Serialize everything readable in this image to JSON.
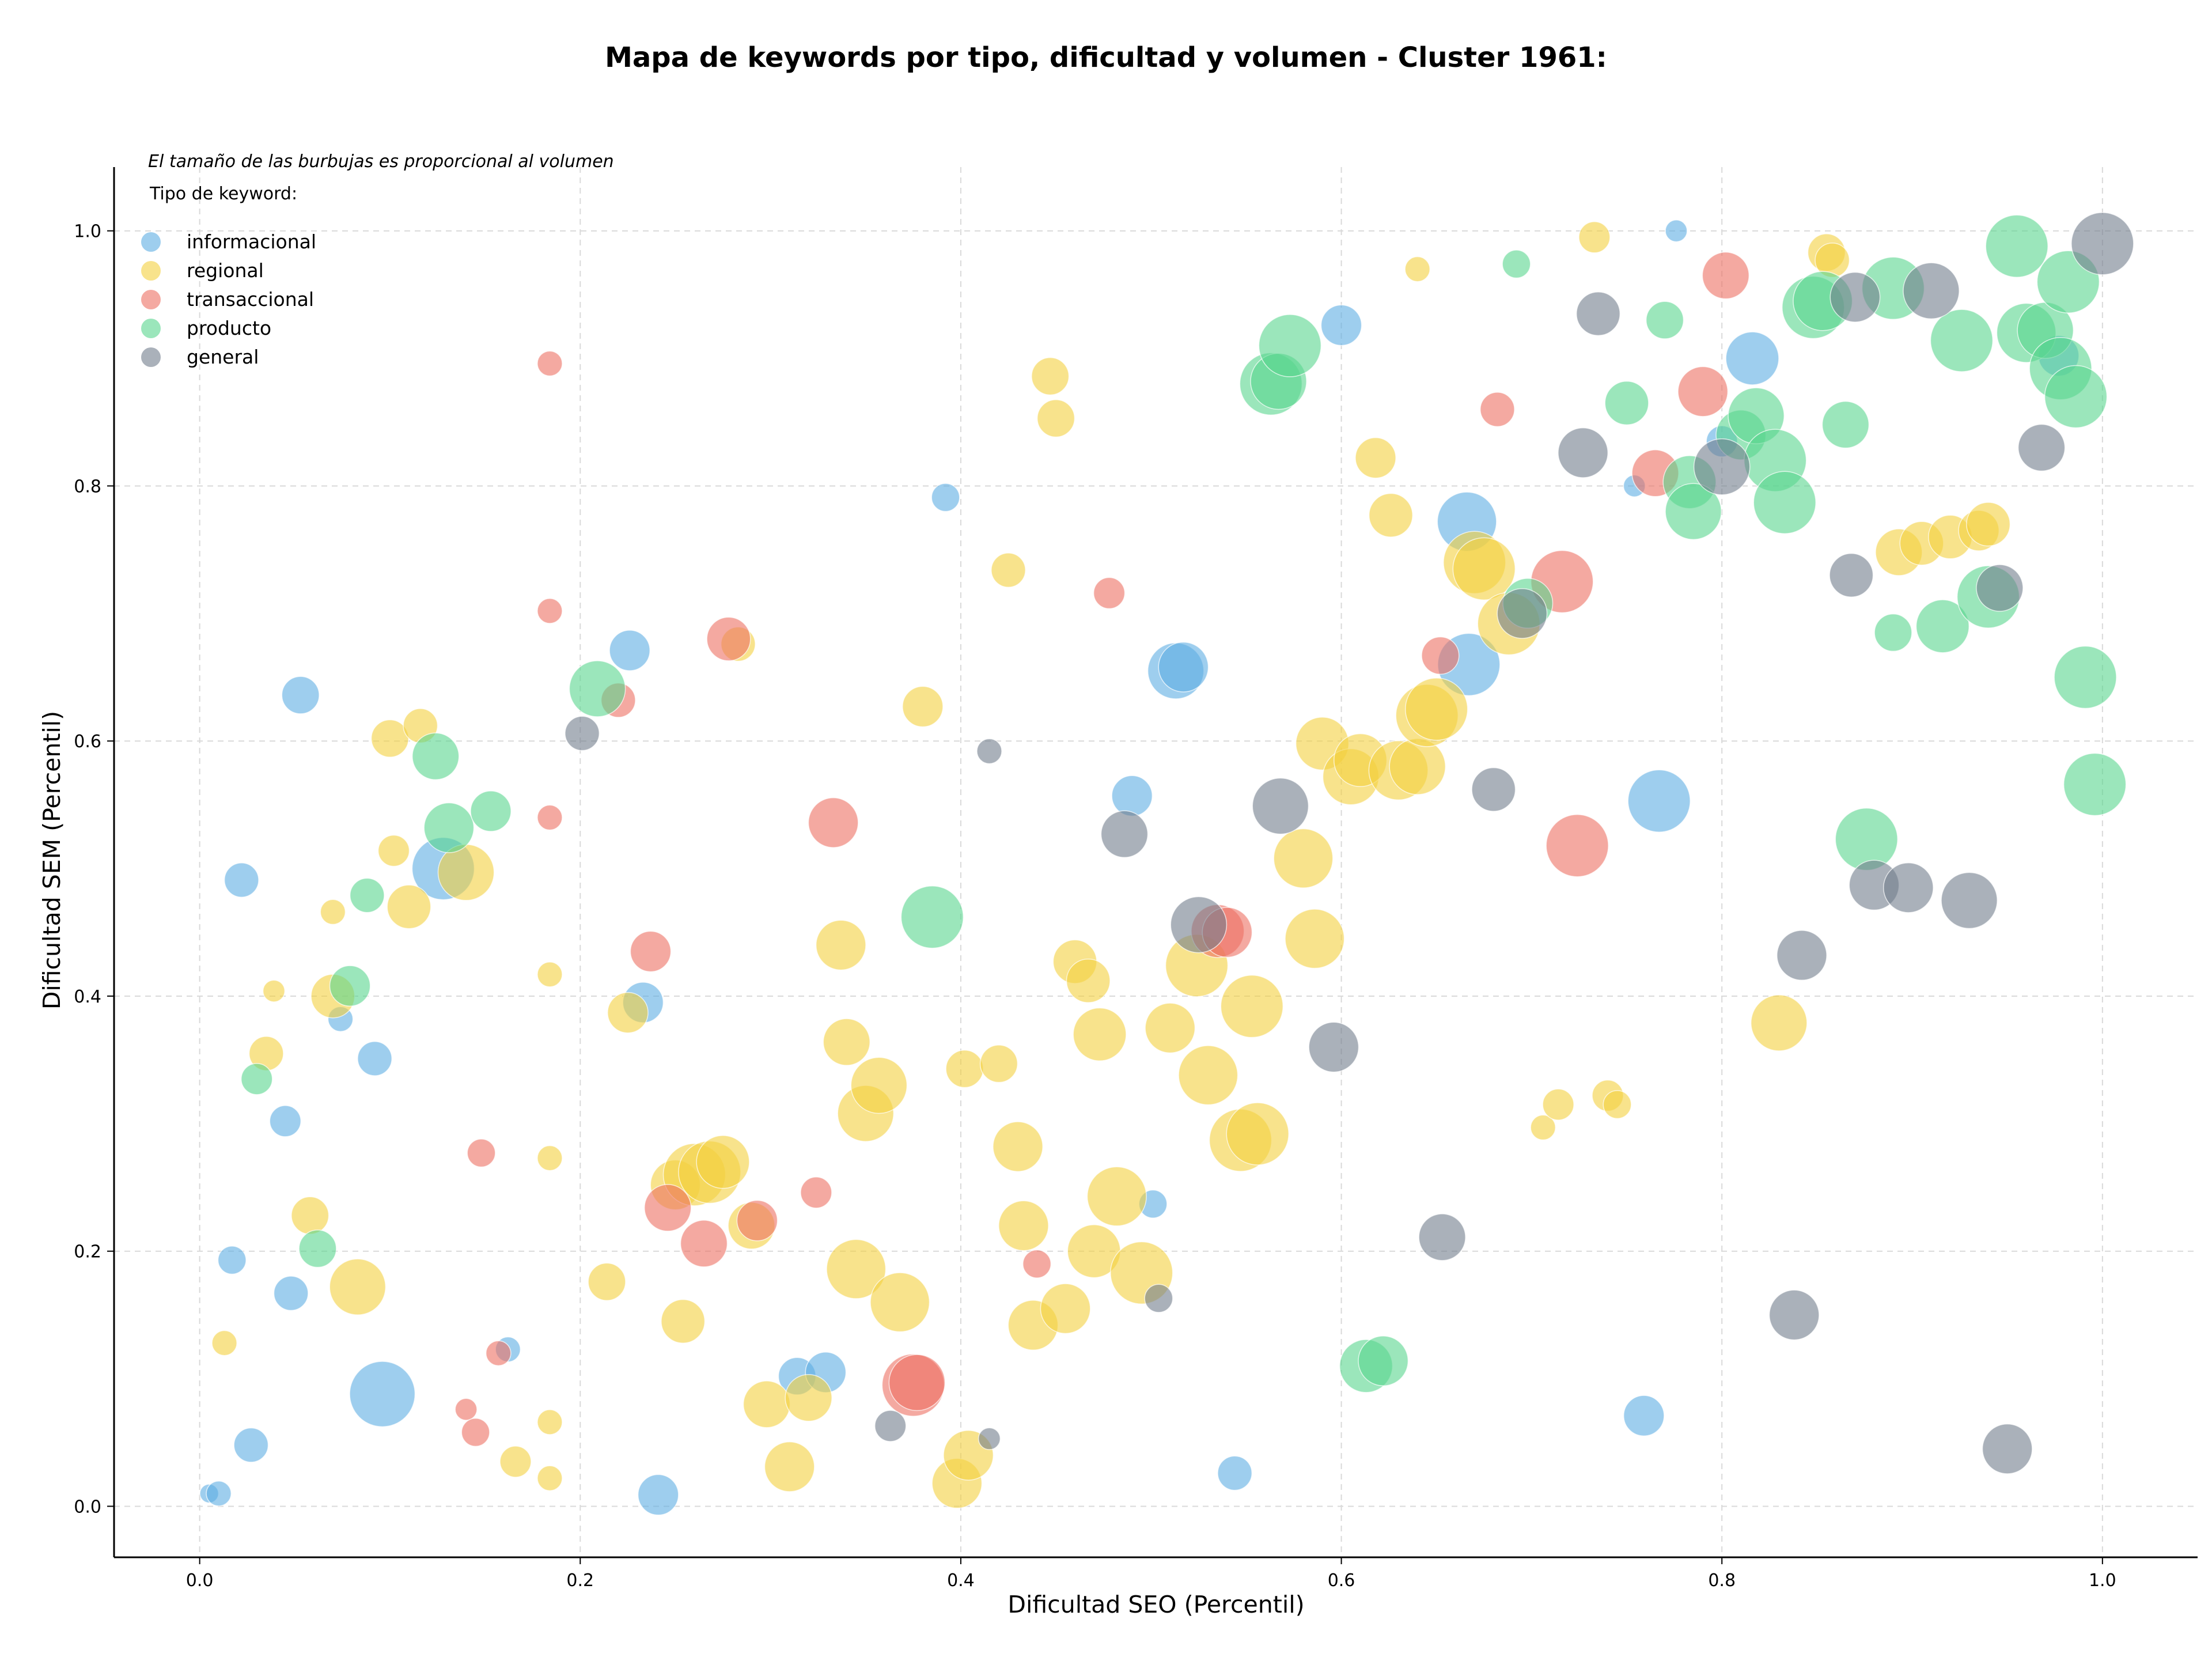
{
  "chart_data": {
    "type": "scatter",
    "title": "Mapa de keywords por tipo, dificultad y volumen - Cluster 1961:",
    "xlabel": "Dificultad SEO (Percentil)",
    "ylabel": "Dificultad SEM (Percentil)",
    "xlim": [
      -0.045,
      1.05
    ],
    "ylim": [
      -0.04,
      1.05
    ],
    "xticks": [
      0.0,
      0.2,
      0.4,
      0.6,
      0.8,
      1.0
    ],
    "yticks": [
      0.0,
      0.2,
      0.4,
      0.6,
      0.8,
      1.0
    ],
    "xtick_labels": [
      "0.0",
      "0.2",
      "0.4",
      "0.6",
      "0.8",
      "1.0"
    ],
    "ytick_labels": [
      "0.0",
      "0.2",
      "0.4",
      "0.6",
      "0.8",
      "1.0"
    ],
    "grid": true,
    "note": "El tamaño de las burbujas es proporcional al volumen",
    "legend_title": "Tipo de keyword:",
    "legend_position": "top-left",
    "series": [
      {
        "name": "informacional",
        "color": "#5DADE2",
        "points": [
          [
            0.005,
            0.01,
            0.6
          ],
          [
            0.01,
            0.01,
            0.8
          ],
          [
            0.017,
            0.193,
            0.9
          ],
          [
            0.022,
            0.491,
            1.1
          ],
          [
            0.027,
            0.048,
            1.1
          ],
          [
            0.045,
            0.302,
            1.0
          ],
          [
            0.048,
            0.167,
            1.1
          ],
          [
            0.053,
            0.636,
            1.2
          ],
          [
            0.074,
            0.382,
            0.8
          ],
          [
            0.092,
            0.351,
            1.1
          ],
          [
            0.096,
            0.088,
            2.1
          ],
          [
            0.128,
            0.5,
            2.0
          ],
          [
            0.162,
            0.123,
            0.8
          ],
          [
            0.226,
            0.671,
            1.3
          ],
          [
            0.233,
            0.395,
            1.3
          ],
          [
            0.241,
            0.009,
            1.3
          ],
          [
            0.314,
            0.102,
            1.2
          ],
          [
            0.329,
            0.105,
            1.3
          ],
          [
            0.392,
            0.791,
            0.9
          ],
          [
            0.49,
            0.557,
            1.3
          ],
          [
            0.501,
            0.237,
            0.9
          ],
          [
            0.513,
            0.655,
            1.8
          ],
          [
            0.517,
            0.658,
            1.6
          ],
          [
            0.544,
            0.026,
            1.1
          ],
          [
            0.6,
            0.926,
            1.3
          ],
          [
            0.666,
            0.772,
            1.9
          ],
          [
            0.667,
            0.66,
            2.0
          ],
          [
            0.754,
            0.8,
            0.7
          ],
          [
            0.759,
            0.071,
            1.3
          ],
          [
            0.767,
            0.553,
            2.0
          ],
          [
            0.776,
            1.0,
            0.7
          ],
          [
            0.8,
            0.835,
            1.0
          ],
          [
            0.816,
            0.9,
            1.7
          ],
          [
            0.977,
            0.902,
            1.3
          ]
        ]
      },
      {
        "name": "regional",
        "color": "#F4D03F",
        "points": [
          [
            0.013,
            0.128,
            0.8
          ],
          [
            0.035,
            0.355,
            1.1
          ],
          [
            0.039,
            0.404,
            0.7
          ],
          [
            0.058,
            0.228,
            1.2
          ],
          [
            0.07,
            0.466,
            0.8
          ],
          [
            0.07,
            0.4,
            1.4
          ],
          [
            0.083,
            0.172,
            1.8
          ],
          [
            0.1,
            0.602,
            1.2
          ],
          [
            0.102,
            0.514,
            1.0
          ],
          [
            0.11,
            0.47,
            1.4
          ],
          [
            0.116,
            0.612,
            1.1
          ],
          [
            0.14,
            0.497,
            1.8
          ],
          [
            0.166,
            0.035,
            1.0
          ],
          [
            0.184,
            0.417,
            0.8
          ],
          [
            0.184,
            0.273,
            0.8
          ],
          [
            0.184,
            0.066,
            0.8
          ],
          [
            0.184,
            0.022,
            0.8
          ],
          [
            0.214,
            0.176,
            1.2
          ],
          [
            0.225,
            0.387,
            1.3
          ],
          [
            0.25,
            0.252,
            1.6
          ],
          [
            0.254,
            0.145,
            1.4
          ],
          [
            0.26,
            0.26,
            2.0
          ],
          [
            0.268,
            0.262,
            2.0
          ],
          [
            0.275,
            0.27,
            1.7
          ],
          [
            0.283,
            0.676,
            1.1
          ],
          [
            0.29,
            0.22,
            1.5
          ],
          [
            0.298,
            0.08,
            1.5
          ],
          [
            0.31,
            0.031,
            1.6
          ],
          [
            0.32,
            0.085,
            1.5
          ],
          [
            0.337,
            0.44,
            1.6
          ],
          [
            0.34,
            0.364,
            1.5
          ],
          [
            0.345,
            0.186,
            1.9
          ],
          [
            0.35,
            0.308,
            1.8
          ],
          [
            0.357,
            0.33,
            1.8
          ],
          [
            0.368,
            0.16,
            1.9
          ],
          [
            0.38,
            0.627,
            1.3
          ],
          [
            0.398,
            0.018,
            1.6
          ],
          [
            0.404,
            0.04,
            1.6
          ],
          [
            0.402,
            0.343,
            1.2
          ],
          [
            0.42,
            0.347,
            1.2
          ],
          [
            0.425,
            0.734,
            1.1
          ],
          [
            0.43,
            0.282,
            1.6
          ],
          [
            0.433,
            0.22,
            1.6
          ],
          [
            0.438,
            0.142,
            1.6
          ],
          [
            0.447,
            0.886,
            1.2
          ],
          [
            0.45,
            0.853,
            1.2
          ],
          [
            0.455,
            0.155,
            1.6
          ],
          [
            0.46,
            0.427,
            1.4
          ],
          [
            0.467,
            0.412,
            1.4
          ],
          [
            0.47,
            0.2,
            1.7
          ],
          [
            0.473,
            0.37,
            1.7
          ],
          [
            0.482,
            0.243,
            1.9
          ],
          [
            0.495,
            0.183,
            2.0
          ],
          [
            0.51,
            0.375,
            1.6
          ],
          [
            0.53,
            0.338,
            1.9
          ],
          [
            0.524,
            0.424,
            2.0
          ],
          [
            0.547,
            0.287,
            2.0
          ],
          [
            0.553,
            0.392,
            2.0
          ],
          [
            0.556,
            0.292,
            2.0
          ],
          [
            0.58,
            0.508,
            1.9
          ],
          [
            0.586,
            0.445,
            1.9
          ],
          [
            0.59,
            0.598,
            1.7
          ],
          [
            0.605,
            0.572,
            1.8
          ],
          [
            0.61,
            0.585,
            1.7
          ],
          [
            0.618,
            0.822,
            1.3
          ],
          [
            0.626,
            0.777,
            1.4
          ],
          [
            0.63,
            0.577,
            1.9
          ],
          [
            0.64,
            0.58,
            1.8
          ],
          [
            0.64,
            0.97,
            0.8
          ],
          [
            0.645,
            0.62,
            2.0
          ],
          [
            0.65,
            0.625,
            2.0
          ],
          [
            0.67,
            0.74,
            2.0
          ],
          [
            0.675,
            0.735,
            2.0
          ],
          [
            0.688,
            0.692,
            2.0
          ],
          [
            0.706,
            0.297,
            0.8
          ],
          [
            0.714,
            0.315,
            1.0
          ],
          [
            0.733,
            0.995,
            1.0
          ],
          [
            0.74,
            0.322,
            1.0
          ],
          [
            0.745,
            0.315,
            0.9
          ],
          [
            0.83,
            0.379,
            1.8
          ],
          [
            0.855,
            0.983,
            1.2
          ],
          [
            0.858,
            0.977,
            1.1
          ],
          [
            0.893,
            0.748,
            1.5
          ],
          [
            0.905,
            0.755,
            1.4
          ],
          [
            0.92,
            0.76,
            1.4
          ],
          [
            0.935,
            0.765,
            1.3
          ],
          [
            0.94,
            0.77,
            1.4
          ]
        ]
      },
      {
        "name": "transaccional",
        "color": "#EC7063",
        "points": [
          [
            0.14,
            0.076,
            0.7
          ],
          [
            0.145,
            0.058,
            0.9
          ],
          [
            0.148,
            0.277,
            0.9
          ],
          [
            0.157,
            0.12,
            0.8
          ],
          [
            0.184,
            0.896,
            0.8
          ],
          [
            0.184,
            0.702,
            0.8
          ],
          [
            0.184,
            0.54,
            0.8
          ],
          [
            0.22,
            0.632,
            1.1
          ],
          [
            0.237,
            0.435,
            1.3
          ],
          [
            0.246,
            0.234,
            1.5
          ],
          [
            0.265,
            0.206,
            1.5
          ],
          [
            0.278,
            0.68,
            1.4
          ],
          [
            0.293,
            0.224,
            1.3
          ],
          [
            0.324,
            0.246,
            1.0
          ],
          [
            0.333,
            0.536,
            1.6
          ],
          [
            0.375,
            0.095,
            2.0
          ],
          [
            0.377,
            0.097,
            1.8
          ],
          [
            0.44,
            0.19,
            0.9
          ],
          [
            0.478,
            0.716,
            1.0
          ],
          [
            0.535,
            0.451,
            1.7
          ],
          [
            0.54,
            0.45,
            1.6
          ],
          [
            0.652,
            0.667,
            1.2
          ],
          [
            0.682,
            0.86,
            1.1
          ],
          [
            0.716,
            0.725,
            2.0
          ],
          [
            0.724,
            0.518,
            2.0
          ],
          [
            0.765,
            0.81,
            1.5
          ],
          [
            0.79,
            0.874,
            1.6
          ],
          [
            0.802,
            0.965,
            1.5
          ]
        ]
      },
      {
        "name": "producto",
        "color": "#58D68D",
        "points": [
          [
            0.03,
            0.335,
            1.0
          ],
          [
            0.062,
            0.202,
            1.2
          ],
          [
            0.079,
            0.408,
            1.3
          ],
          [
            0.088,
            0.479,
            1.1
          ],
          [
            0.124,
            0.588,
            1.5
          ],
          [
            0.131,
            0.532,
            1.6
          ],
          [
            0.153,
            0.545,
            1.3
          ],
          [
            0.209,
            0.641,
            1.8
          ],
          [
            0.385,
            0.462,
            2.0
          ],
          [
            0.563,
            0.88,
            2.0
          ],
          [
            0.567,
            0.882,
            1.8
          ],
          [
            0.573,
            0.91,
            2.0
          ],
          [
            0.613,
            0.11,
            1.7
          ],
          [
            0.622,
            0.114,
            1.6
          ],
          [
            0.692,
            0.974,
            0.9
          ],
          [
            0.698,
            0.708,
            1.6
          ],
          [
            0.75,
            0.865,
            1.4
          ],
          [
            0.77,
            0.93,
            1.2
          ],
          [
            0.783,
            0.803,
            1.7
          ],
          [
            0.785,
            0.78,
            1.8
          ],
          [
            0.81,
            0.84,
            1.6
          ],
          [
            0.818,
            0.855,
            1.8
          ],
          [
            0.828,
            0.82,
            2.0
          ],
          [
            0.833,
            0.787,
            2.0
          ],
          [
            0.848,
            0.94,
            2.0
          ],
          [
            0.853,
            0.945,
            1.9
          ],
          [
            0.865,
            0.848,
            1.5
          ],
          [
            0.876,
            0.523,
            2.0
          ],
          [
            0.89,
            0.955,
            2.0
          ],
          [
            0.89,
            0.685,
            1.2
          ],
          [
            0.916,
            0.69,
            1.7
          ],
          [
            0.926,
            0.914,
            2.0
          ],
          [
            0.94,
            0.713,
            2.0
          ],
          [
            0.955,
            0.988,
            2.0
          ],
          [
            0.96,
            0.92,
            1.9
          ],
          [
            0.97,
            0.922,
            1.8
          ],
          [
            0.978,
            0.892,
            2.0
          ],
          [
            0.982,
            0.96,
            2.0
          ],
          [
            0.986,
            0.87,
            2.0
          ],
          [
            0.991,
            0.65,
            2.0
          ],
          [
            0.996,
            0.566,
            2.0
          ]
        ]
      },
      {
        "name": "general",
        "color": "#717D8C",
        "points": [
          [
            0.201,
            0.606,
            1.1
          ],
          [
            0.363,
            0.063,
            1.0
          ],
          [
            0.415,
            0.592,
            0.8
          ],
          [
            0.415,
            0.053,
            0.7
          ],
          [
            0.486,
            0.527,
            1.5
          ],
          [
            0.504,
            0.163,
            0.9
          ],
          [
            0.525,
            0.456,
            1.8
          ],
          [
            0.568,
            0.549,
            1.8
          ],
          [
            0.596,
            0.36,
            1.6
          ],
          [
            0.653,
            0.211,
            1.5
          ],
          [
            0.68,
            0.562,
            1.4
          ],
          [
            0.695,
            0.7,
            1.6
          ],
          [
            0.727,
            0.826,
            1.6
          ],
          [
            0.735,
            0.935,
            1.4
          ],
          [
            0.8,
            0.815,
            1.8
          ],
          [
            0.838,
            0.15,
            1.6
          ],
          [
            0.842,
            0.432,
            1.6
          ],
          [
            0.868,
            0.73,
            1.4
          ],
          [
            0.87,
            0.948,
            1.6
          ],
          [
            0.88,
            0.487,
            1.6
          ],
          [
            0.898,
            0.485,
            1.6
          ],
          [
            0.91,
            0.953,
            1.8
          ],
          [
            0.93,
            0.475,
            1.8
          ],
          [
            0.95,
            0.045,
            1.6
          ],
          [
            0.946,
            0.72,
            1.5
          ],
          [
            0.968,
            0.83,
            1.5
          ],
          [
            1.0,
            0.99,
            2.0
          ]
        ]
      }
    ]
  }
}
